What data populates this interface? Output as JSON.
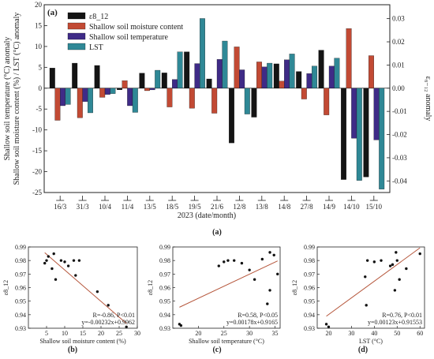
{
  "chart_data": [
    {
      "panel_label": "(a)",
      "caption": "(a)",
      "type": "bar",
      "xlabel": "2023 (date/month)",
      "ylabel_left_line1": "Shallow soil temperature (°C) anomaly",
      "ylabel_left_line2": "Shallow soil moisture content (%) / LST (°C) anomaly",
      "ylabel_right": "ε₈₋₁₂ anomaly",
      "ylim_left": [
        -25,
        20
      ],
      "ylim_right": [
        -0.045,
        0.036
      ],
      "left_ticks": [
        "20",
        "15",
        "10",
        "5",
        "0",
        "-5",
        "-10",
        "-15",
        "-20",
        "-25"
      ],
      "right_ticks": [
        "0.03",
        "0.02",
        "0.01",
        "0.00",
        "-0.01",
        "-0.02",
        "-0.03",
        "-0.04"
      ],
      "categories": [
        "16/3",
        "31/3",
        "10/4",
        "11/4",
        "13/5",
        "18/5",
        "19/5",
        "21/6",
        "12/8",
        "13/8",
        "14/8",
        "27/8",
        "14/9",
        "14/10",
        "15/10"
      ],
      "legend_position": "top-left",
      "series": [
        {
          "name": "ε8_12",
          "axis": "right",
          "color": "#141414",
          "values": [
            0.0087,
            0.0108,
            0.0098,
            -0.0007,
            0.0065,
            0.0066,
            0.0157,
            0.004,
            -0.0236,
            -0.0125,
            0.0105,
            0.0072,
            0.0164,
            -0.0394,
            -0.0383
          ]
        },
        {
          "name": "Shallow soil moisture content",
          "axis": "left",
          "color": "#c24a34",
          "values": [
            -7.7,
            -7.1,
            -2.2,
            1.8,
            -0.6,
            -4.5,
            -4.8,
            -6.0,
            9.9,
            6.3,
            1.7,
            -2.6,
            -6.4,
            14.3,
            7.8
          ]
        },
        {
          "name": "Shallow soil temperature",
          "axis": "left",
          "color": "#3f2b87",
          "values": [
            -4.2,
            -3.2,
            -1.5,
            -4.2,
            -0.4,
            2.1,
            5.9,
            6.9,
            4.4,
            5.1,
            6.8,
            3.5,
            5.3,
            -12.0,
            -12.4
          ]
        },
        {
          "name": "LST",
          "axis": "left",
          "color": "#2f8896",
          "values": [
            -3.9,
            -5.9,
            -1.3,
            -5.8,
            4.3,
            8.7,
            16.7,
            11.3,
            -6.2,
            6.0,
            8.2,
            5.3,
            7.2,
            -22.1,
            -24.2
          ]
        }
      ]
    },
    {
      "panel_label": "(b)",
      "type": "scatter",
      "xlabel": "Shallow soil moisture content (%)",
      "ylabel": "ε8_12",
      "xlim": [
        0,
        30
      ],
      "ylim": [
        0.93,
        0.99
      ],
      "xticks": [
        "5",
        "10",
        "15",
        "20",
        "25",
        "30"
      ],
      "yticks": [
        "0.93",
        "0.94",
        "0.95",
        "0.96",
        "0.97",
        "0.98",
        "0.99"
      ],
      "annotation_r": "R=-0.86, P<0.01",
      "annotation_eq": "y=-0.00232x+0.9962",
      "trend_color": "#b5553a",
      "fit": {
        "slope": -0.00232,
        "intercept": 0.9962,
        "x_range": [
          4.5,
          27
        ]
      },
      "points": [
        [
          4.5,
          0.978
        ],
        [
          5,
          0.98
        ],
        [
          5.5,
          0.983
        ],
        [
          6.5,
          0.974
        ],
        [
          7,
          0.985
        ],
        [
          7.5,
          0.966
        ],
        [
          9,
          0.98
        ],
        [
          10,
          0.979
        ],
        [
          11,
          0.976
        ],
        [
          12.5,
          0.98
        ],
        [
          13,
          0.969
        ],
        [
          14,
          0.98
        ],
        [
          19,
          0.957
        ],
        [
          22,
          0.947
        ],
        [
          27,
          0.931
        ]
      ]
    },
    {
      "panel_label": "(c)",
      "type": "scatter",
      "xlabel": "Shallow soil temperature (°C)",
      "ylabel": "ε8_12",
      "xlim": [
        15,
        36
      ],
      "ylim": [
        0.93,
        0.99
      ],
      "xticks": [
        "20",
        "25",
        "30",
        "35"
      ],
      "yticks": [
        "0.93",
        "0.94",
        "0.95",
        "0.96",
        "0.97",
        "0.98",
        "0.99"
      ],
      "annotation_r": "R=0.58, P<0.05",
      "annotation_eq": "y=0.00178x+0.9165",
      "trend_color": "#b5553a",
      "fit": {
        "slope": 0.00178,
        "intercept": 0.9165,
        "x_range": [
          16.3,
          35.5
        ]
      },
      "points": [
        [
          16.3,
          0.933
        ],
        [
          16.6,
          0.932
        ],
        [
          24,
          0.976
        ],
        [
          25,
          0.979
        ],
        [
          25.8,
          0.98
        ],
        [
          27,
          0.98
        ],
        [
          28.5,
          0.978
        ],
        [
          30,
          0.973
        ],
        [
          31,
          0.966
        ],
        [
          32.5,
          0.981
        ],
        [
          33.5,
          0.948
        ],
        [
          34,
          0.958
        ],
        [
          34,
          0.986
        ],
        [
          34.8,
          0.984
        ],
        [
          35.5,
          0.97
        ]
      ]
    },
    {
      "panel_label": "(d)",
      "type": "scatter",
      "xlabel": "LST (°C)",
      "ylabel": "ε8_12",
      "xlim": [
        15,
        62
      ],
      "ylim": [
        0.93,
        0.99
      ],
      "xticks": [
        "20",
        "30",
        "40",
        "50",
        "60"
      ],
      "yticks": [
        "0.93",
        "0.94",
        "0.95",
        "0.96",
        "0.97",
        "0.98",
        "0.99"
      ],
      "annotation_r": "R=0.76, P<0.01",
      "annotation_eq": "y=0.00123x+0.91553",
      "trend_color": "#b5553a",
      "fit": {
        "slope": 0.00123,
        "intercept": 0.91553,
        "x_range": [
          19,
          60
        ]
      },
      "points": [
        [
          19,
          0.933
        ],
        [
          20,
          0.931
        ],
        [
          36,
          0.968
        ],
        [
          36.5,
          0.947
        ],
        [
          37,
          0.98
        ],
        [
          40,
          0.979
        ],
        [
          43,
          0.98
        ],
        [
          47,
          0.976
        ],
        [
          48,
          0.977
        ],
        [
          49,
          0.958
        ],
        [
          49.5,
          0.986
        ],
        [
          50,
          0.98
        ],
        [
          51,
          0.966
        ],
        [
          54,
          0.974
        ],
        [
          60,
          0.985
        ]
      ]
    }
  ],
  "captions": {
    "a": "(a)",
    "b": "(b)",
    "c": "(c)",
    "d": "(d)"
  }
}
